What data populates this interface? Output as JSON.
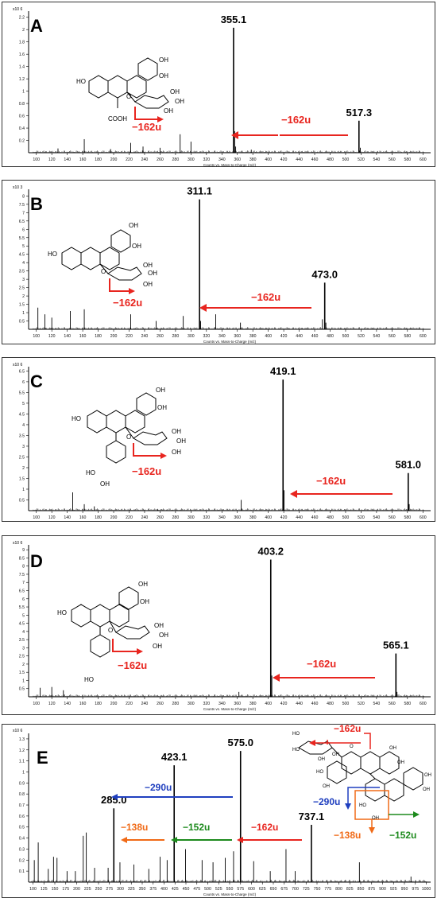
{
  "x_axis_caption": "Counts vs. Mass-to-Charge (m/z)",
  "colors": {
    "loss_hexose": "#e8251f",
    "loss_290": "#1f3fbf",
    "loss_152": "#1d8a1d",
    "loss_138": "#f06a17",
    "box": "#f06a17"
  },
  "chart_data": [
    {
      "type": "bar",
      "panel_label": "A",
      "y_scale_label": "x10 6",
      "x_ticks": [
        100,
        120,
        140,
        160,
        180,
        200,
        220,
        240,
        260,
        280,
        300,
        320,
        340,
        360,
        380,
        400,
        420,
        440,
        460,
        480,
        500,
        520,
        540,
        560,
        580,
        600
      ],
      "y_ticks": [
        "0.2",
        "0.4",
        "0.6",
        "0.8",
        "1",
        "1.2",
        "1.4",
        "1.6",
        "1.8",
        "2",
        "2.2"
      ],
      "xlim": [
        90,
        610
      ],
      "ylim": [
        0,
        2.3
      ],
      "peaks": [
        {
          "mz": 355.1,
          "intensity": 2.03,
          "label": "355.1"
        },
        {
          "mz": 517.3,
          "intensity": 0.52,
          "label": "517.3"
        },
        {
          "mz": 356.5,
          "intensity": 0.35,
          "label": ""
        },
        {
          "mz": 357.8,
          "intensity": 0.1,
          "label": ""
        },
        {
          "mz": 519.0,
          "intensity": 0.08,
          "label": ""
        },
        {
          "mz": 162,
          "intensity": 0.22,
          "label": ""
        },
        {
          "mz": 222,
          "intensity": 0.16,
          "label": ""
        },
        {
          "mz": 238,
          "intensity": 0.1,
          "label": ""
        },
        {
          "mz": 286,
          "intensity": 0.3,
          "label": ""
        },
        {
          "mz": 300,
          "intensity": 0.18,
          "label": ""
        },
        {
          "mz": 260,
          "intensity": 0.08,
          "label": ""
        },
        {
          "mz": 128,
          "intensity": 0.07,
          "label": ""
        },
        {
          "mz": 196,
          "intensity": 0.06,
          "label": ""
        },
        {
          "mz": 378,
          "intensity": 0.05,
          "label": ""
        }
      ],
      "annotations": [
        {
          "text": "−162u",
          "color_key": "loss_hexose"
        },
        {
          "text": "−162u",
          "color_key": "loss_hexose"
        }
      ]
    },
    {
      "type": "bar",
      "panel_label": "B",
      "y_scale_label": "x10 3",
      "x_ticks": [
        100,
        120,
        140,
        160,
        180,
        200,
        220,
        240,
        260,
        280,
        300,
        320,
        340,
        360,
        380,
        400,
        420,
        440,
        460,
        480,
        500,
        520,
        540,
        560,
        580,
        600
      ],
      "y_ticks": [
        "0.5",
        "1",
        "1.5",
        "2",
        "2.5",
        "3",
        "3.5",
        "4",
        "4.5",
        "5",
        "5.5",
        "6",
        "6.5",
        "7",
        "7.5",
        "8"
      ],
      "xlim": [
        90,
        610
      ],
      "ylim": [
        0,
        8.4
      ],
      "peaks": [
        {
          "mz": 311.1,
          "intensity": 7.8,
          "label": "311.1"
        },
        {
          "mz": 473.0,
          "intensity": 2.8,
          "label": "473.0"
        },
        {
          "mz": 102,
          "intensity": 1.3,
          "label": ""
        },
        {
          "mz": 111,
          "intensity": 0.9,
          "label": ""
        },
        {
          "mz": 120,
          "intensity": 0.7,
          "label": ""
        },
        {
          "mz": 144,
          "intensity": 1.1,
          "label": ""
        },
        {
          "mz": 162,
          "intensity": 1.2,
          "label": ""
        },
        {
          "mz": 222,
          "intensity": 0.9,
          "label": ""
        },
        {
          "mz": 255,
          "intensity": 0.5,
          "label": ""
        },
        {
          "mz": 290,
          "intensity": 0.8,
          "label": ""
        },
        {
          "mz": 312.5,
          "intensity": 0.5,
          "label": ""
        },
        {
          "mz": 332,
          "intensity": 0.9,
          "label": ""
        },
        {
          "mz": 364,
          "intensity": 0.4,
          "label": ""
        },
        {
          "mz": 470,
          "intensity": 0.6,
          "label": ""
        },
        {
          "mz": 474.5,
          "intensity": 0.4,
          "label": ""
        }
      ],
      "annotations": [
        {
          "text": "−162u",
          "color_key": "loss_hexose"
        },
        {
          "text": "−162u",
          "color_key": "loss_hexose"
        }
      ]
    },
    {
      "type": "bar",
      "panel_label": "C",
      "y_scale_label": "x10 6",
      "x_ticks": [
        100,
        120,
        140,
        160,
        180,
        200,
        220,
        240,
        260,
        280,
        300,
        320,
        340,
        360,
        380,
        400,
        420,
        440,
        460,
        480,
        500,
        520,
        540,
        560,
        580,
        600
      ],
      "y_ticks": [
        "0.5",
        "1",
        "1.5",
        "2",
        "2.5",
        "3",
        "3.5",
        "4",
        "4.5",
        "5",
        "5.5",
        "6",
        "6.5"
      ],
      "xlim": [
        90,
        610
      ],
      "ylim": [
        0,
        6.7
      ],
      "peaks": [
        {
          "mz": 419.1,
          "intensity": 6.1,
          "label": "419.1"
        },
        {
          "mz": 581.0,
          "intensity": 1.75,
          "label": "581.0"
        },
        {
          "mz": 420.5,
          "intensity": 0.95,
          "label": ""
        },
        {
          "mz": 582.3,
          "intensity": 0.3,
          "label": ""
        },
        {
          "mz": 147,
          "intensity": 0.85,
          "label": ""
        },
        {
          "mz": 162,
          "intensity": 0.3,
          "label": ""
        },
        {
          "mz": 175,
          "intensity": 0.2,
          "label": ""
        },
        {
          "mz": 365,
          "intensity": 0.5,
          "label": ""
        },
        {
          "mz": 257,
          "intensity": 0.05,
          "label": ""
        }
      ],
      "annotations": [
        {
          "text": "−162u",
          "color_key": "loss_hexose"
        },
        {
          "text": "−162u",
          "color_key": "loss_hexose"
        }
      ]
    },
    {
      "type": "bar",
      "panel_label": "D",
      "y_scale_label": "x10 6",
      "x_ticks": [
        100,
        120,
        140,
        160,
        180,
        200,
        220,
        240,
        260,
        280,
        300,
        320,
        340,
        360,
        380,
        400,
        420,
        440,
        460,
        480,
        500,
        520,
        540,
        560,
        580,
        600
      ],
      "y_ticks": [
        "0.5",
        "1",
        "1.5",
        "2",
        "2.5",
        "3",
        "3.5",
        "4",
        "4.5",
        "5",
        "5.5",
        "6",
        "6.5",
        "7",
        "7.5",
        "8",
        "8.5",
        "9"
      ],
      "xlim": [
        90,
        610
      ],
      "ylim": [
        0,
        9.3
      ],
      "peaks": [
        {
          "mz": 403.2,
          "intensity": 8.4,
          "label": "403.2"
        },
        {
          "mz": 565.1,
          "intensity": 2.65,
          "label": "565.1"
        },
        {
          "mz": 404.6,
          "intensity": 1.3,
          "label": ""
        },
        {
          "mz": 105,
          "intensity": 0.55,
          "label": ""
        },
        {
          "mz": 120,
          "intensity": 0.6,
          "label": ""
        },
        {
          "mz": 135,
          "intensity": 0.4,
          "label": ""
        },
        {
          "mz": 362,
          "intensity": 0.3,
          "label": ""
        },
        {
          "mz": 566.5,
          "intensity": 0.3,
          "label": ""
        }
      ],
      "annotations": [
        {
          "text": "−162u",
          "color_key": "loss_hexose"
        },
        {
          "text": "−162u",
          "color_key": "loss_hexose"
        }
      ]
    },
    {
      "type": "bar",
      "panel_label": "E",
      "y_scale_label": "x10 6",
      "x_ticks": [
        100,
        125,
        150,
        175,
        200,
        225,
        250,
        275,
        300,
        325,
        350,
        375,
        400,
        425,
        450,
        475,
        500,
        525,
        550,
        575,
        600,
        625,
        650,
        675,
        700,
        725,
        750,
        775,
        800,
        825,
        850,
        875,
        900,
        925,
        950,
        975,
        1000
      ],
      "y_ticks": [
        "0.1",
        "0.2",
        "0.3",
        "0.4",
        "0.5",
        "0.6",
        "0.7",
        "0.8",
        "0.9",
        "1",
        "1.1",
        "1.2",
        "1.3"
      ],
      "xlim": [
        90,
        1010
      ],
      "ylim": [
        0,
        1.35
      ],
      "peaks": [
        {
          "mz": 575.0,
          "intensity": 1.19,
          "label": "575.0"
        },
        {
          "mz": 423.1,
          "intensity": 1.06,
          "label": "423.1"
        },
        {
          "mz": 285.0,
          "intensity": 0.67,
          "label": "285.0"
        },
        {
          "mz": 737.1,
          "intensity": 0.52,
          "label": "737.1"
        },
        {
          "mz": 103,
          "intensity": 0.2,
          "label": ""
        },
        {
          "mz": 112,
          "intensity": 0.36,
          "label": ""
        },
        {
          "mz": 135,
          "intensity": 0.12,
          "label": ""
        },
        {
          "mz": 147,
          "intensity": 0.23,
          "label": ""
        },
        {
          "mz": 155,
          "intensity": 0.22,
          "label": ""
        },
        {
          "mz": 178,
          "intensity": 0.1,
          "label": ""
        },
        {
          "mz": 197,
          "intensity": 0.1,
          "label": ""
        },
        {
          "mz": 215,
          "intensity": 0.42,
          "label": ""
        },
        {
          "mz": 222,
          "intensity": 0.45,
          "label": ""
        },
        {
          "mz": 241,
          "intensity": 0.13,
          "label": ""
        },
        {
          "mz": 272,
          "intensity": 0.13,
          "label": ""
        },
        {
          "mz": 299,
          "intensity": 0.18,
          "label": ""
        },
        {
          "mz": 331,
          "intensity": 0.16,
          "label": ""
        },
        {
          "mz": 365,
          "intensity": 0.12,
          "label": ""
        },
        {
          "mz": 391,
          "intensity": 0.23,
          "label": ""
        },
        {
          "mz": 407,
          "intensity": 0.2,
          "label": ""
        },
        {
          "mz": 449,
          "intensity": 0.3,
          "label": ""
        },
        {
          "mz": 487,
          "intensity": 0.2,
          "label": ""
        },
        {
          "mz": 512,
          "intensity": 0.18,
          "label": ""
        },
        {
          "mz": 540,
          "intensity": 0.22,
          "label": ""
        },
        {
          "mz": 559,
          "intensity": 0.28,
          "label": ""
        },
        {
          "mz": 605,
          "intensity": 0.19,
          "label": ""
        },
        {
          "mz": 643,
          "intensity": 0.1,
          "label": ""
        },
        {
          "mz": 679,
          "intensity": 0.3,
          "label": ""
        },
        {
          "mz": 700,
          "intensity": 0.1,
          "label": ""
        },
        {
          "mz": 847,
          "intensity": 0.18,
          "label": ""
        },
        {
          "mz": 965,
          "intensity": 0.05,
          "label": ""
        }
      ],
      "annotations": [
        {
          "text": "−290u",
          "color_key": "loss_290"
        },
        {
          "text": "−138u",
          "color_key": "loss_138"
        },
        {
          "text": "−152u",
          "color_key": "loss_152"
        },
        {
          "text": "−162u",
          "color_key": "loss_hexose"
        },
        {
          "text": "−162u",
          "color_key": "loss_hexose"
        },
        {
          "text": "−290u",
          "color_key": "loss_290"
        },
        {
          "text": "−138u",
          "color_key": "loss_138"
        },
        {
          "text": "−152u",
          "color_key": "loss_152"
        }
      ]
    }
  ],
  "structure_labels": {
    "A": [
      "HO",
      "OH",
      "OH",
      "O",
      "OH",
      "OH",
      "OH",
      "COOH"
    ],
    "B": [
      "OH",
      "OH",
      "HO",
      "O",
      "OH",
      "OH",
      "OH"
    ],
    "C": [
      "OH",
      "OH",
      "HO",
      "O",
      "OH",
      "OH",
      "OH",
      "HO",
      "OH"
    ],
    "D": [
      "OH",
      "OH",
      "HO",
      "O",
      "OH",
      "OH",
      "OH",
      "HO"
    ],
    "E": [
      "HO",
      "HO",
      "OH",
      "OH",
      "OH",
      "O",
      "OH",
      "HO",
      "OH",
      "HO",
      "OH",
      "OH",
      "OH"
    ]
  }
}
